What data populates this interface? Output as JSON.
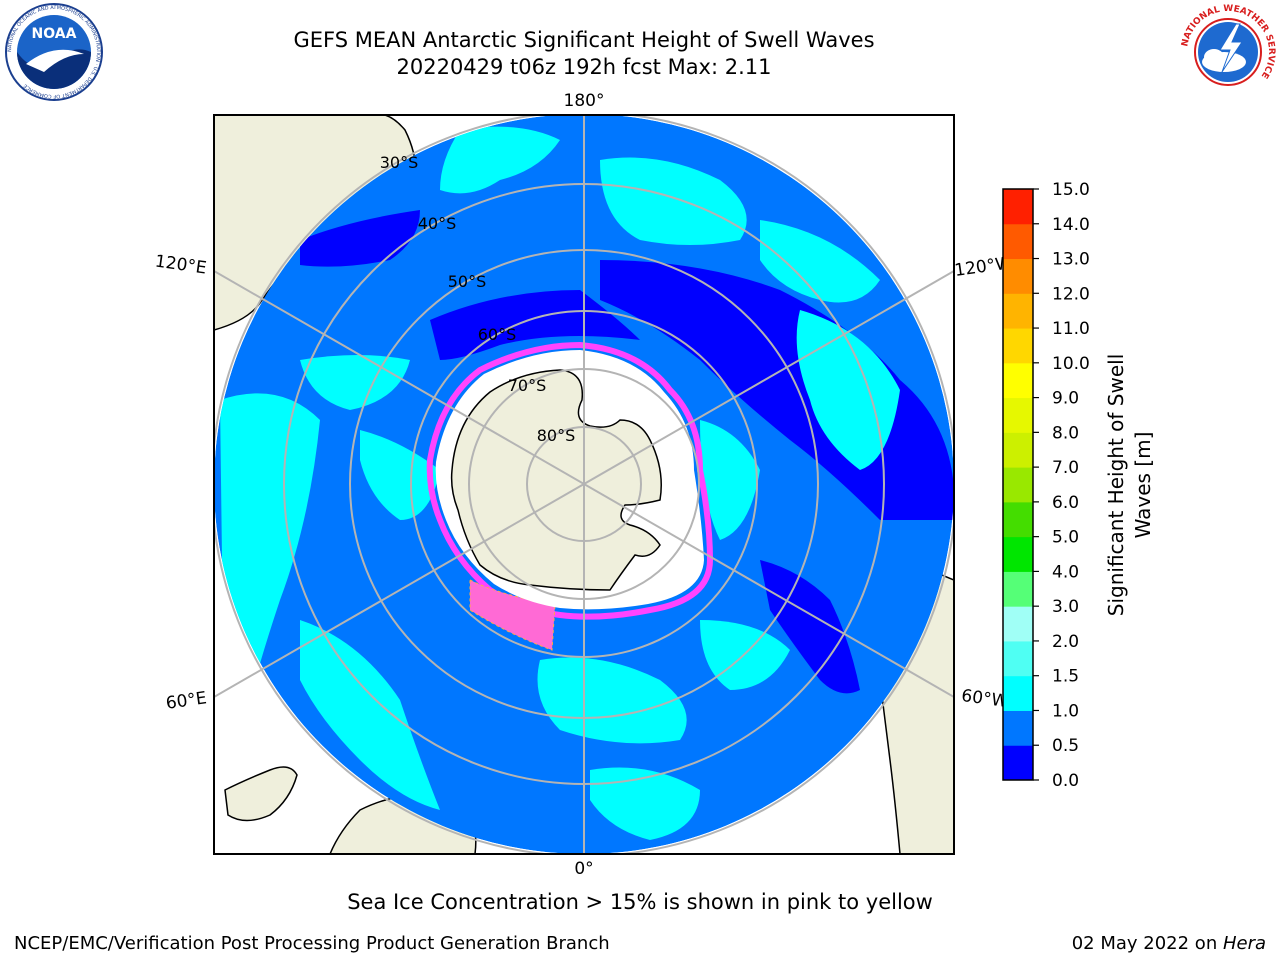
{
  "header": {
    "title_line1": "GEFS MEAN Antarctic Significant Height of Swell Waves",
    "title_line2": "20220429 t06z 192h fcst   Max: 2.11"
  },
  "logos": {
    "noaa": {
      "text": "NOAA",
      "ring_text": "NATIONAL OCEANIC AND ATMOSPHERIC ADMINISTRATION · U.S. DEPARTMENT OF COMMERCE"
    },
    "nws": {
      "ring_text": "NATIONAL WEATHER SERVICE"
    }
  },
  "map": {
    "projection": "south polar stereographic",
    "longitude_labels": {
      "top": "180°",
      "bottom": "0°",
      "upper_left": "120°E",
      "upper_right": "120°W",
      "lower_left": "60°E",
      "lower_right": "60°W"
    },
    "latitude_labels": [
      "30°S",
      "40°S",
      "50°S",
      "60°S",
      "70°S",
      "80°S"
    ],
    "colors": {
      "land": "#efefdc",
      "ice_shelf": "#ffffff",
      "grid": "#b4b4b4",
      "sea_ice_edge": "#ff44ff",
      "sea_ice_fill": "#ff6ad5"
    }
  },
  "colorbar": {
    "label_line1": "Significant Height of Swell",
    "label_line2": "Waves [m]",
    "ticks": [
      "0.0",
      "0.5",
      "1.0",
      "1.5",
      "2.0",
      "3.0",
      "4.0",
      "5.0",
      "6.0",
      "7.0",
      "8.0",
      "9.0",
      "10.0",
      "11.0",
      "12.0",
      "13.0",
      "14.0",
      "15.0"
    ],
    "colors": [
      "#0000ff",
      "#0077ff",
      "#00ffff",
      "#4ffff3",
      "#a0fff6",
      "#55ff77",
      "#00e600",
      "#44dd00",
      "#99e800",
      "#ccf000",
      "#e6f800",
      "#ffff00",
      "#ffd700",
      "#ffb400",
      "#ff8c00",
      "#ff5a00",
      "#ff2000"
    ]
  },
  "caption": "Sea Ice Concentration > 15% is shown in pink to yellow",
  "footer": {
    "left": "NCEP/EMC/Verification Post Processing Product Generation Branch",
    "right_date": "02 May 2022 on ",
    "right_machine": "Hera"
  }
}
